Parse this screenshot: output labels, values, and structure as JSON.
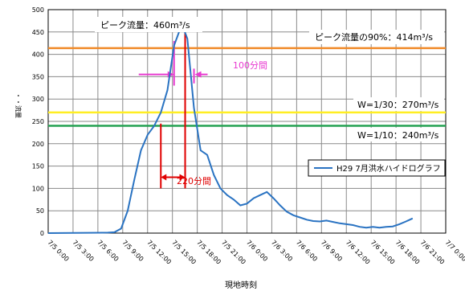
{
  "chart_data": {
    "type": "line",
    "xlabel": "現地時刻",
    "ylabel": "・・流量",
    "ylim": [
      0,
      500
    ],
    "yticks": [
      0,
      50,
      100,
      150,
      200,
      250,
      300,
      350,
      400,
      450,
      500
    ],
    "x_range_hours": [
      0,
      60
    ],
    "xtick_labels": [
      "7/5 0:00",
      "7/5 3:00",
      "7/5 6:00",
      "7/5 9:00",
      "7/5 12:00",
      "7/5 15:00",
      "7/5 18:00",
      "7/5 21:00",
      "7/6 0:00",
      "7/6 3:00",
      "7/6 6:00",
      "7/6 9:00",
      "7/6 12:00",
      "7/6 15:00",
      "7/6 18:00",
      "7/6 21:00",
      "7/7 0:00"
    ],
    "grid": true,
    "legend_placement": "right",
    "series": [
      {
        "name": "H29 7月洪水ハイドログラフ",
        "color": "#2a73c2",
        "points": [
          [
            0,
            0
          ],
          [
            9,
            1
          ],
          [
            10,
            2
          ],
          [
            11,
            10
          ],
          [
            12,
            50
          ],
          [
            13,
            120
          ],
          [
            14,
            185
          ],
          [
            15,
            220
          ],
          [
            16,
            240
          ],
          [
            17,
            270
          ],
          [
            18,
            320
          ],
          [
            19,
            420
          ],
          [
            20,
            460
          ],
          [
            20.5,
            455
          ],
          [
            21,
            435
          ],
          [
            22,
            280
          ],
          [
            23,
            185
          ],
          [
            24,
            175
          ],
          [
            25,
            130
          ],
          [
            26,
            100
          ],
          [
            27,
            85
          ],
          [
            28,
            75
          ],
          [
            29,
            62
          ],
          [
            30,
            66
          ],
          [
            31,
            78
          ],
          [
            32,
            85
          ],
          [
            33,
            92
          ],
          [
            34,
            78
          ],
          [
            35,
            62
          ],
          [
            36,
            48
          ],
          [
            37,
            40
          ],
          [
            38,
            35
          ],
          [
            39,
            30
          ],
          [
            40,
            27
          ],
          [
            41,
            26
          ],
          [
            42,
            28
          ],
          [
            43,
            25
          ],
          [
            44,
            22
          ],
          [
            45,
            20
          ],
          [
            46,
            18
          ],
          [
            47,
            14
          ],
          [
            48,
            12
          ],
          [
            49,
            14
          ],
          [
            50,
            12
          ],
          [
            51,
            14
          ],
          [
            52,
            15
          ],
          [
            53,
            20
          ],
          [
            54,
            26
          ],
          [
            55,
            33
          ]
        ]
      }
    ],
    "reference_lines": [
      {
        "label": "ピーク流量の90%：414m³/s",
        "value": 414,
        "color": "#f08a28"
      },
      {
        "label": "W=1/30：270m³/s",
        "value": 270,
        "color": "#ffee22"
      },
      {
        "label": "W=1/10：240m³/s",
        "value": 240,
        "color": "#22a050"
      }
    ],
    "annotations": [
      {
        "label": "ピーク流量：460m³/s",
        "color": "#000000"
      },
      {
        "label": "100分間",
        "color": "#e83ad0"
      },
      {
        "label": "220分間",
        "color": "#e00000"
      }
    ],
    "markers": {
      "peak_hour": 20.67,
      "red_start_hour": 17,
      "red_arrow_value": 125,
      "magenta_start_hour": 19,
      "magenta_end_hour": 20.67,
      "magenta_arrow_value": 355
    }
  }
}
